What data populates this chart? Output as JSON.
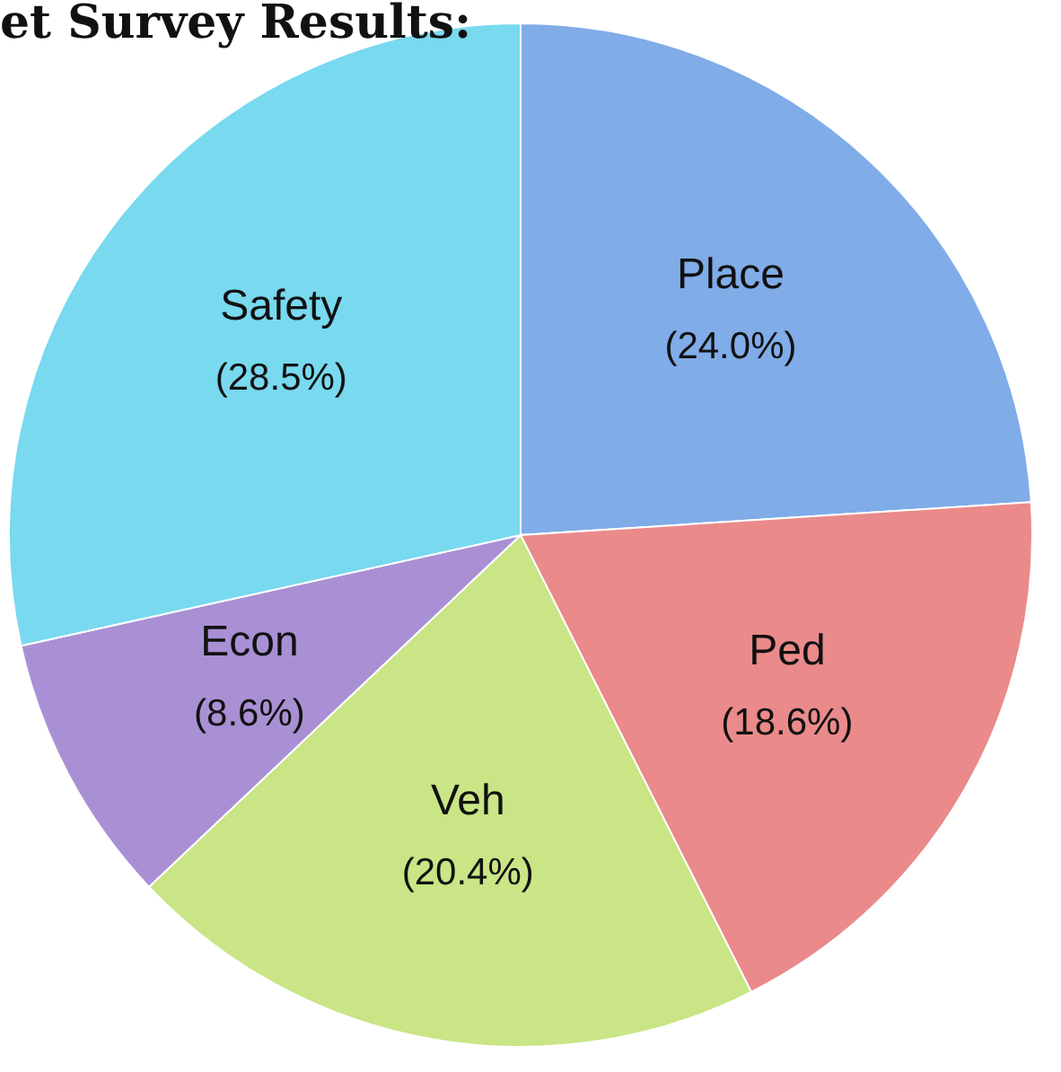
{
  "chart_data": {
    "type": "pie",
    "title": "et Survey Results:",
    "categories": [
      "Place",
      "Ped",
      "Veh",
      "Econ",
      "Safety"
    ],
    "values": [
      24.0,
      18.6,
      20.4,
      8.6,
      28.5
    ],
    "value_labels": [
      "(24.0%)",
      "(18.6%)",
      "(20.4%)",
      "(8.6%)",
      "(28.5%)"
    ],
    "colors": [
      "#80ace8",
      "#ea8a8a",
      "#c9e585",
      "#a990d4",
      "#78d9ef"
    ],
    "legend": false
  }
}
